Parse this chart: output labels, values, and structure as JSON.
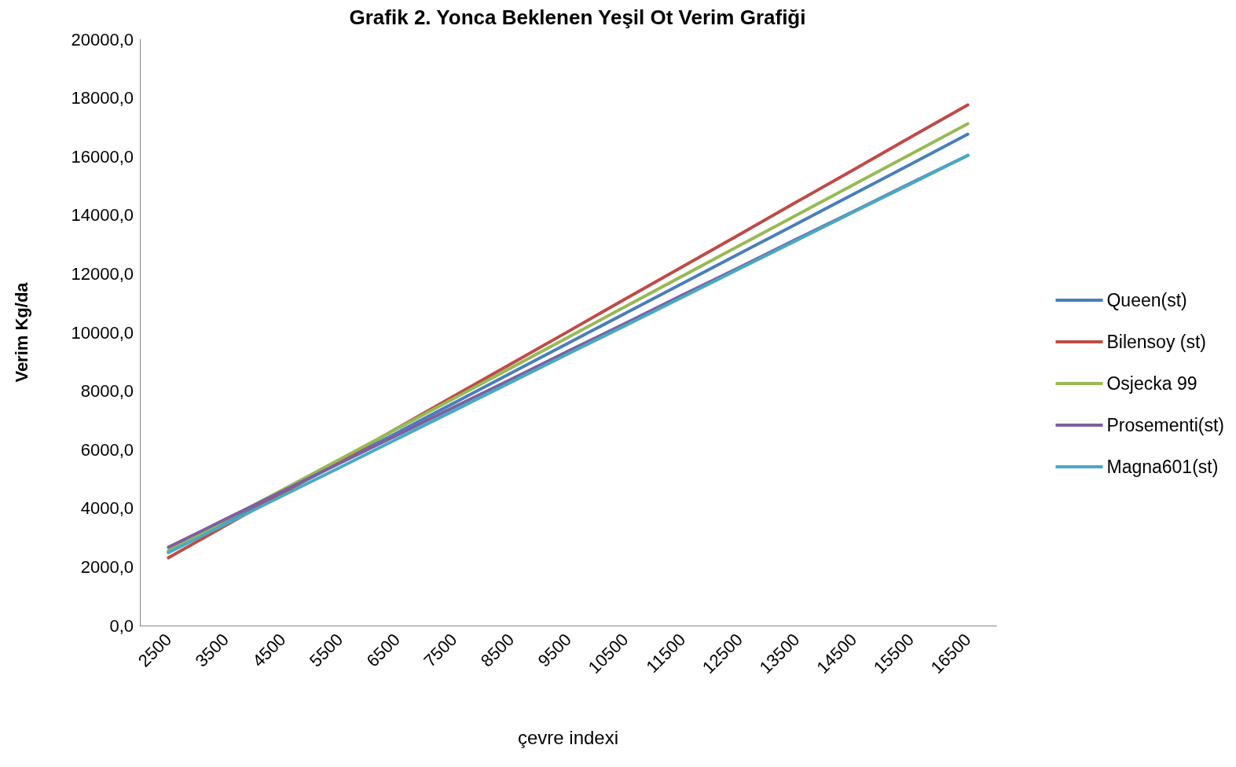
{
  "chart_data": {
    "type": "line",
    "title": "Grafik 2. Yonca Beklenen Yeşil Ot Verim Grafiği",
    "xlabel": "çevre indexi",
    "ylabel": "Verim Kg/da",
    "categories": [
      "2500",
      "3500",
      "4500",
      "5500",
      "6500",
      "7500",
      "8500",
      "9500",
      "10500",
      "11500",
      "12500",
      "13500",
      "14500",
      "15500",
      "16500"
    ],
    "series": [
      {
        "name": "Queen(st)",
        "color": "#4a7ebb",
        "values": [
          2500,
          3520,
          4540,
          5560,
          6570,
          7590,
          8610,
          9630,
          10650,
          11670,
          12690,
          13700,
          14720,
          15740,
          16760
        ]
      },
      {
        "name": "Bilensoy (st)",
        "color": "#be4b48",
        "values": [
          2310,
          3410,
          4520,
          5620,
          6720,
          7830,
          8930,
          10030,
          11140,
          12240,
          13340,
          14450,
          15550,
          16660,
          17760
        ]
      },
      {
        "name": "Osjecka 99",
        "color": "#98b954",
        "values": [
          2550,
          3590,
          4630,
          5670,
          6710,
          7750,
          8790,
          9830,
          10880,
          11920,
          12960,
          14000,
          15040,
          16080,
          17120
        ]
      },
      {
        "name": "Prosementi(st)",
        "color": "#7d60a0",
        "values": [
          2670,
          3630,
          4580,
          5540,
          6490,
          7450,
          8400,
          9360,
          10310,
          11270,
          12220,
          13180,
          14130,
          15090,
          16040
        ]
      },
      {
        "name": "Magna601(st)",
        "color": "#46aac5",
        "values": [
          2490,
          3460,
          4430,
          5390,
          6360,
          7330,
          8300,
          9270,
          10230,
          11200,
          12170,
          13140,
          14110,
          15070,
          16040
        ]
      }
    ],
    "ylim": [
      0,
      20000
    ],
    "yticks": [
      {
        "value": 0,
        "label": "0,0"
      },
      {
        "value": 2000,
        "label": "2000,0"
      },
      {
        "value": 4000,
        "label": "4000,0"
      },
      {
        "value": 6000,
        "label": "6000,0"
      },
      {
        "value": 8000,
        "label": "8000,0"
      },
      {
        "value": 10000,
        "label": "10000,0"
      },
      {
        "value": 12000,
        "label": "12000,0"
      },
      {
        "value": 14000,
        "label": "14000,0"
      },
      {
        "value": 16000,
        "label": "16000,0"
      },
      {
        "value": 18000,
        "label": "18000,0"
      },
      {
        "value": 20000,
        "label": "20000,0"
      }
    ],
    "grid": false,
    "legend": "right",
    "marker": "none",
    "line_style": "solid"
  }
}
